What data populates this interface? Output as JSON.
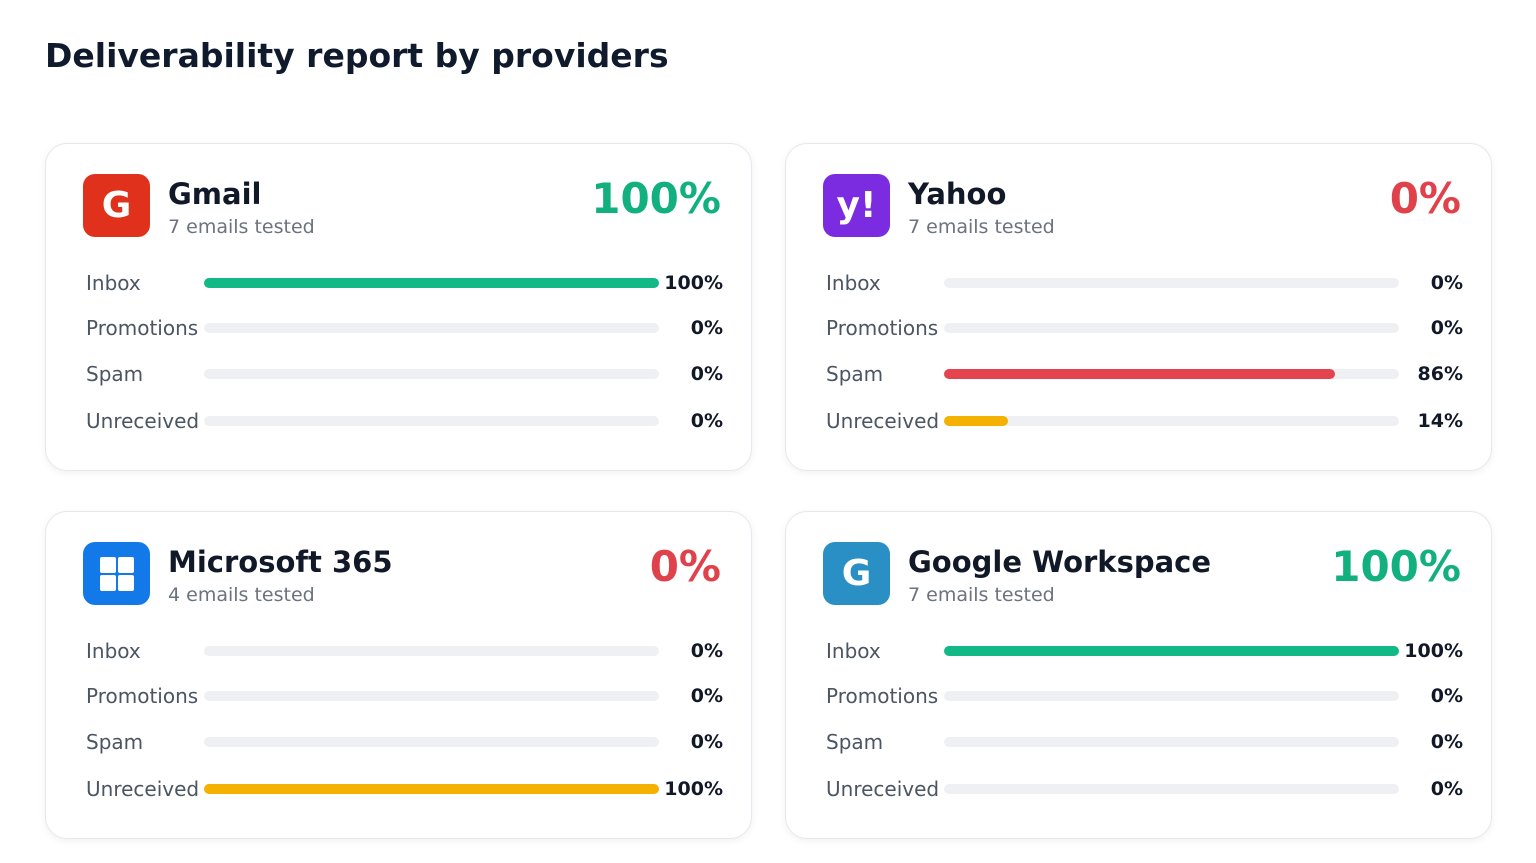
{
  "title": "Deliverability report by providers",
  "providers": [
    {
      "name": "Gmail",
      "logo": "G",
      "logo_color": "#e0311c",
      "subtitle": "7 emails tested",
      "score": "100%",
      "score_color": "#12b07f",
      "rows": [
        {
          "label": "Inbox",
          "value": 100,
          "value_label": "100%",
          "color": "#12b886"
        },
        {
          "label": "Promotions",
          "value": 0,
          "value_label": "0%",
          "color": "#3b82f6"
        },
        {
          "label": "Spam",
          "value": 0,
          "value_label": "0%",
          "color": "#e5444f"
        },
        {
          "label": "Unreceived",
          "value": 0,
          "value_label": "0%",
          "color": "#f5b100"
        }
      ]
    },
    {
      "name": "Yahoo",
      "logo": "y!",
      "logo_color": "#7b2be0",
      "subtitle": "7 emails tested",
      "score": "0%",
      "score_color": "#e0424c",
      "rows": [
        {
          "label": "Inbox",
          "value": 0,
          "value_label": "0%",
          "color": "#12b886"
        },
        {
          "label": "Promotions",
          "value": 0,
          "value_label": "0%",
          "color": "#3b82f6"
        },
        {
          "label": "Spam",
          "value": 86,
          "value_label": "86%",
          "color": "#e5444f"
        },
        {
          "label": "Unreceived",
          "value": 14,
          "value_label": "14%",
          "color": "#f5b100"
        }
      ]
    },
    {
      "name": "Microsoft 365",
      "logo": "",
      "logo_color": "#1479e8",
      "subtitle": "4 emails tested",
      "score": "0%",
      "score_color": "#e0424c",
      "rows": [
        {
          "label": "Inbox",
          "value": 0,
          "value_label": "0%",
          "color": "#12b886"
        },
        {
          "label": "Promotions",
          "value": 0,
          "value_label": "0%",
          "color": "#3b82f6"
        },
        {
          "label": "Spam",
          "value": 0,
          "value_label": "0%",
          "color": "#e5444f"
        },
        {
          "label": "Unreceived",
          "value": 100,
          "value_label": "100%",
          "color": "#f5b100"
        }
      ]
    },
    {
      "name": "Google Workspace",
      "logo": "G",
      "logo_color": "#2a8fc4",
      "subtitle": "7 emails tested",
      "score": "100%",
      "score_color": "#12b07f",
      "rows": [
        {
          "label": "Inbox",
          "value": 100,
          "value_label": "100%",
          "color": "#12b886"
        },
        {
          "label": "Promotions",
          "value": 0,
          "value_label": "0%",
          "color": "#3b82f6"
        },
        {
          "label": "Spam",
          "value": 0,
          "value_label": "0%",
          "color": "#e5444f"
        },
        {
          "label": "Unreceived",
          "value": 0,
          "value_label": "0%",
          "color": "#f5b100"
        }
      ]
    }
  ]
}
